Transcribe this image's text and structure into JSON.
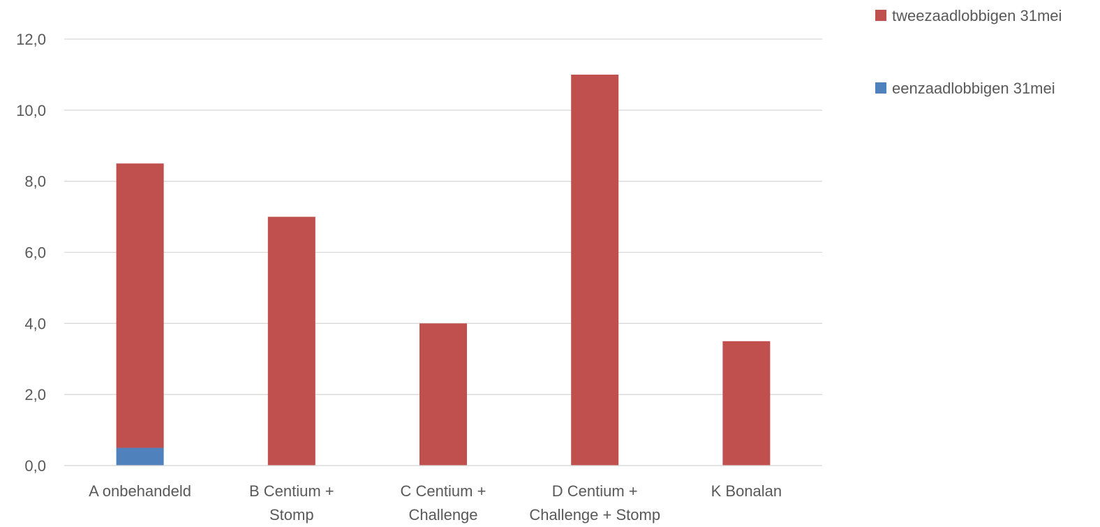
{
  "chart_data": {
    "type": "bar",
    "stacked": true,
    "title": "",
    "xlabel": "",
    "ylabel": "",
    "categories": [
      [
        "A onbehandeld"
      ],
      [
        "B Centium +",
        "Stomp"
      ],
      [
        "C Centium +",
        "Challenge"
      ],
      [
        "D Centium +",
        "Challenge + Stomp"
      ],
      [
        "K Bonalan"
      ]
    ],
    "series": [
      {
        "name": "eenzaadlobbigen 31mei",
        "color": "#4F81BD",
        "values": [
          0.5,
          0,
          0,
          0,
          0
        ]
      },
      {
        "name": "tweezaadlobbigen 31mei",
        "color": "#C0504D",
        "values": [
          8.0,
          7.0,
          4.0,
          11.0,
          3.5
        ]
      }
    ],
    "ylim": [
      0,
      12
    ],
    "yticks": [
      "0,0",
      "2,0",
      "4,0",
      "6,0",
      "8,0",
      "10,0",
      "12,0"
    ],
    "grid": true,
    "legend_position": "top-right",
    "legend_order": [
      "tweezaadlobbigen 31mei",
      "eenzaadlobbigen 31mei"
    ]
  }
}
